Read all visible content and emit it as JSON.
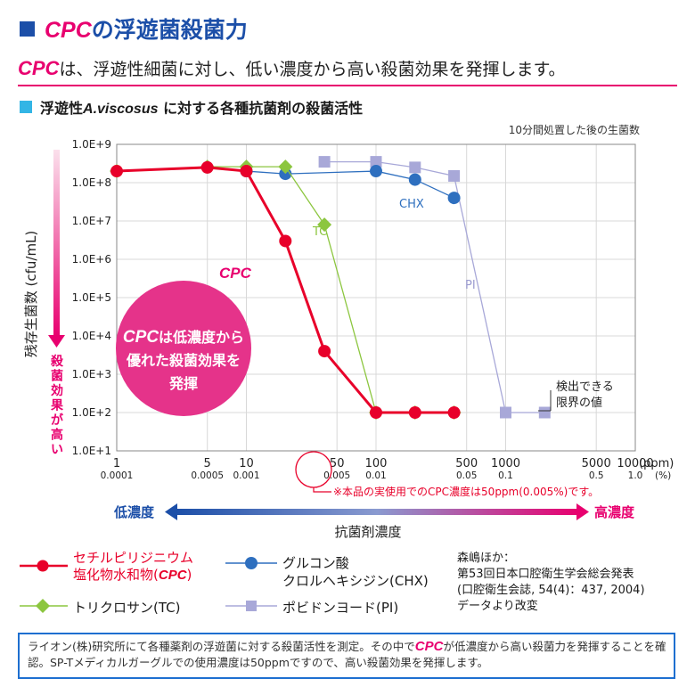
{
  "colors": {
    "accent_blue": "#1c4fa8",
    "brand_pink": "#e8006f",
    "cpc_red": "#e8002a",
    "chx_blue": "#2e6fbf",
    "tc_green": "#8cc63f",
    "pi_lavender": "#a8a8d8",
    "section_cyan": "#33b5e5",
    "bubble_pink": "#e5338a"
  },
  "header": {
    "title_brand": "CPC",
    "title_rest": "の浮遊菌殺菌力",
    "lead_brand": "CPC",
    "lead_rest": "は、浮遊性細菌に対し、低い濃度から高い殺菌効果を発揮します。",
    "subtitle_pre": "浮遊性",
    "subtitle_italic": "A.viscosus",
    "subtitle_post": " に対する各種抗菌剤の殺菌活性"
  },
  "chart_data": {
    "type": "line",
    "title": "浮遊性A.viscosus に対する各種抗菌剤の殺菌活性",
    "note": "10分間処置した後の生菌数",
    "ylabel": "残存生菌数 (cfu/mL)",
    "ylabel_side": "殺菌効果が高い",
    "xlabel": "抗菌剤濃度",
    "x_scale": "log",
    "y_scale": "log",
    "xlim": [
      1,
      10000
    ],
    "ylim": [
      10,
      1000000000
    ],
    "grid": true,
    "x_ticks": [
      {
        "value": 1,
        "label": "1",
        "sub": "0.0001"
      },
      {
        "value": 5,
        "label": "5",
        "sub": "0.0005"
      },
      {
        "value": 10,
        "label": "10",
        "sub": "0.001"
      },
      {
        "value": 50,
        "label": "50",
        "sub": "0.005"
      },
      {
        "value": 100,
        "label": "100",
        "sub": "0.01"
      },
      {
        "value": 500,
        "label": "500",
        "sub": "0.05"
      },
      {
        "value": 1000,
        "label": "1000",
        "sub": "0.1"
      },
      {
        "value": 5000,
        "label": "5000",
        "sub": "0.5"
      },
      {
        "value": 10000,
        "label": "10000",
        "sub": "1.0"
      }
    ],
    "x_unit_ppm": "(ppm)",
    "x_unit_pct": "(%)",
    "y_ticks": [
      {
        "value": 1000000000,
        "label": "1.0E+9"
      },
      {
        "value": 100000000,
        "label": "1.0E+8"
      },
      {
        "value": 10000000,
        "label": "1.0E+7"
      },
      {
        "value": 1000000,
        "label": "1.0E+6"
      },
      {
        "value": 100000,
        "label": "1.0E+5"
      },
      {
        "value": 10000,
        "label": "1.0E+4"
      },
      {
        "value": 1000,
        "label": "1.0E+3"
      },
      {
        "value": 100,
        "label": "1.0E+2"
      },
      {
        "value": 10,
        "label": "1.0E+1"
      }
    ],
    "series": [
      {
        "name": "CPC",
        "color": "#e8002a",
        "marker": "circle",
        "x": [
          1,
          5,
          10,
          20,
          40,
          100,
          200,
          400
        ],
        "y": [
          200000000,
          250000000,
          200000000,
          3000000,
          4000,
          100,
          100,
          100
        ]
      },
      {
        "name": "CHX",
        "color": "#2e6fbf",
        "marker": "circle",
        "x": [
          10,
          20,
          100,
          200,
          400
        ],
        "y": [
          200000000,
          170000000,
          200000000,
          120000000,
          40000000
        ]
      },
      {
        "name": "TC",
        "color": "#8cc63f",
        "marker": "diamond",
        "x": [
          1,
          5,
          10,
          20,
          40,
          100,
          200,
          400
        ],
        "y": [
          200000000,
          260000000,
          260000000,
          260000000,
          8000000,
          100,
          100,
          100
        ]
      },
      {
        "name": "PI",
        "color": "#a8a8d8",
        "marker": "square",
        "x": [
          40,
          100,
          200,
          400,
          1000,
          2000
        ],
        "y": [
          350000000,
          350000000,
          250000000,
          150000000,
          100,
          100
        ]
      }
    ],
    "annotations": {
      "chx_label": "CHX",
      "tc_label": "TC",
      "pi_label": "PI",
      "cpc_label": "CPC",
      "bubble_brand": "CPC",
      "bubble_line1": "は低濃度から",
      "bubble_line2": "優れた殺菌効果を",
      "bubble_line3": "発揮",
      "limit_line1": "検出できる",
      "limit_line2": "限界の値",
      "actual_use": "※本品の実使用でのCPC濃度は50ppm(0.005%)です。"
    },
    "concentration_axis": {
      "low": "低濃度",
      "high": "高濃度"
    }
  },
  "legend": {
    "cpc_line1": "セチルピリジニウム",
    "cpc_line2_pre": "塩化物水和物(",
    "cpc_line2_brand": "CPC",
    "cpc_line2_post": ")",
    "chx_line1": "グルコン酸",
    "chx_line2": "クロルヘキシジン(CHX)",
    "tc": "トリクロサン(TC)",
    "pi": "ポビドンヨード(PI)"
  },
  "reference": {
    "line1": "森嶋ほか：",
    "line2": "第53回日本口腔衛生学会総会発表",
    "line3": "(口腔衛生会誌, 54(4)：437, 2004)",
    "line4": "データより改変"
  },
  "footnote": {
    "pre": "ライオン(株)研究所にて各種薬剤の浮遊菌に対する殺菌活性を測定。その中で",
    "brand": "CPC",
    "post": "が低濃度から高い殺菌力を発揮することを確認。SP-Tメディカルガーグルでの使用濃度は50ppmですので、高い殺菌効果を発揮します。"
  }
}
